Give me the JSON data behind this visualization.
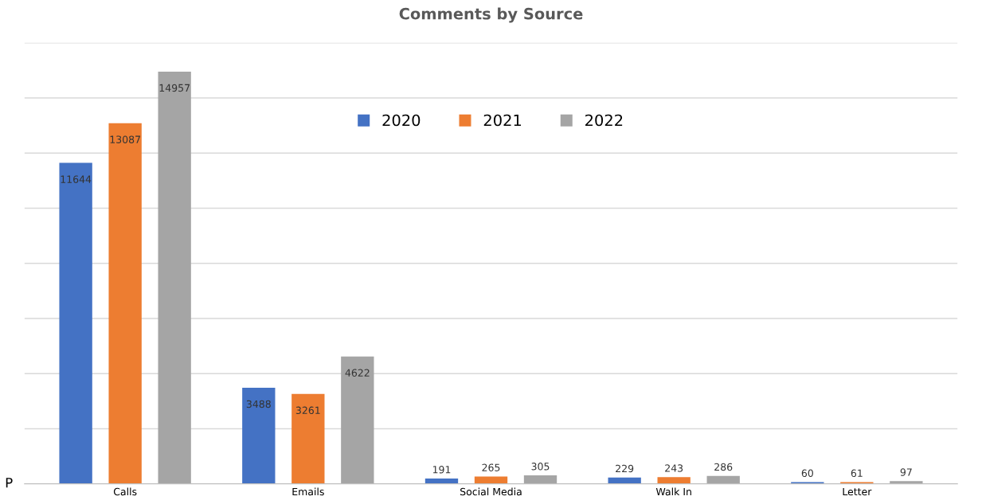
{
  "chart_data": {
    "type": "bar",
    "title": "Comments by Source",
    "categories": [
      "Calls",
      "Emails",
      "Social Media",
      "Walk In",
      "Letter"
    ],
    "series": [
      {
        "name": "2020",
        "color": "#4472c4",
        "values": [
          11644,
          3488,
          191,
          229,
          60
        ]
      },
      {
        "name": "2021",
        "color": "#ed7d31",
        "values": [
          13087,
          3261,
          265,
          243,
          61
        ]
      },
      {
        "name": "2022",
        "color": "#a5a5a5",
        "values": [
          14957,
          4622,
          305,
          286,
          97
        ]
      }
    ],
    "ylim": [
      0,
      16000
    ],
    "yticks": [
      {
        "value": 0,
        "label": null
      },
      {
        "value": 2000,
        "label": null
      },
      {
        "value": 4000,
        "label": null
      },
      {
        "value": 6000,
        "label": null
      },
      {
        "value": 8000,
        "label": null
      },
      {
        "value": 10000,
        "label": null
      },
      {
        "value": 12000,
        "label": null
      },
      {
        "value": 14000,
        "label": null
      },
      {
        "value": 16000,
        "label": null
      }
    ],
    "tick_labels": "x",
    "grid": "y",
    "legend": "top",
    "data_labels": true,
    "annotations": [
      "P"
    ]
  }
}
